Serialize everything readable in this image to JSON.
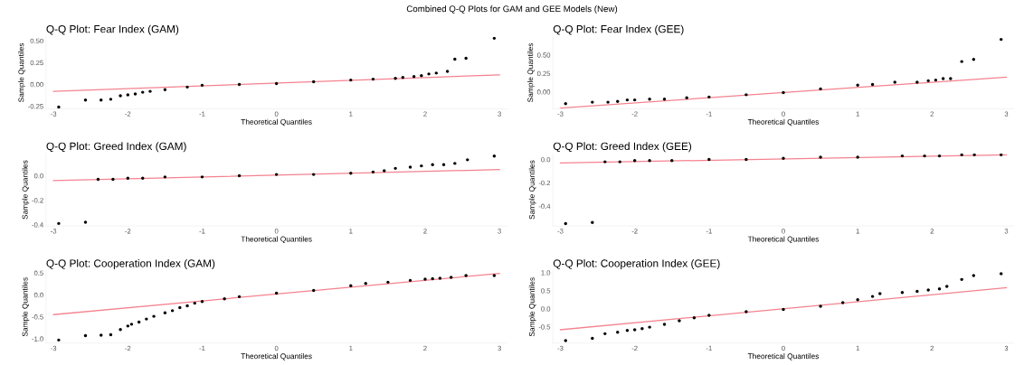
{
  "chart_data": [
    {
      "type": "scatter",
      "title": "Q-Q Plot: Fear Index (GAM)",
      "annotations": [
        "Combined Q-Q Plots for GAM and GEE Models (New)"
      ],
      "xlabel": "Theoretical Quantiles",
      "ylabel": "Sample Quantiles",
      "xlim": [
        -3.1,
        3.1
      ],
      "xticks": [
        -3,
        -2,
        -1,
        0,
        1,
        2,
        3
      ],
      "ylim": [
        -0.28,
        0.55
      ],
      "yticks": [
        -0.25,
        {
          "value": 0,
          "label": "0.00"
        },
        0.25,
        {
          "value": 0.5,
          "label": "0.50"
        }
      ],
      "grid": false,
      "series": [
        {
          "color": "#000000",
          "marker": "circle",
          "x": [
            -2.93,
            -2.57,
            -2.36,
            -2.23,
            -2.1,
            -2.0,
            -1.9,
            -1.8,
            -1.7,
            -1.5,
            -1.2,
            -1.0,
            -0.5,
            0,
            0.5,
            1.0,
            1.3,
            1.6,
            1.7,
            1.85,
            1.95,
            2.05,
            2.15,
            2.3,
            2.4,
            2.55,
            2.93
          ],
          "values": [
            -0.26,
            -0.18,
            -0.18,
            -0.17,
            -0.13,
            -0.12,
            -0.11,
            -0.09,
            -0.08,
            -0.06,
            -0.03,
            -0.01,
            0.0,
            0.01,
            0.03,
            0.05,
            0.06,
            0.07,
            0.08,
            0.09,
            0.1,
            0.12,
            0.13,
            0.15,
            0.29,
            0.3,
            0.53
          ]
        },
        {
          "type": "line",
          "color": "#f4828f",
          "x": [
            -3,
            3
          ],
          "values": [
            -0.08,
            0.11
          ]
        }
      ]
    },
    {
      "type": "scatter",
      "title": "Q-Q Plot: Fear Index (GEE)",
      "xlabel": "Theoretical Quantiles",
      "ylabel": "Sample Quantiles",
      "xlim": [
        -3.1,
        3.1
      ],
      "xticks": [
        -3,
        -2,
        -1,
        0,
        1,
        2,
        3
      ],
      "ylim": [
        -0.23,
        0.75
      ],
      "yticks": [
        {
          "value": 0,
          "label": "0.00"
        },
        0.25,
        {
          "value": 0.5,
          "label": "0.50"
        }
      ],
      "grid": false,
      "series": [
        {
          "color": "#000000",
          "marker": "circle",
          "x": [
            -2.93,
            -2.57,
            -2.36,
            -2.23,
            -2.1,
            -2.0,
            -1.8,
            -1.6,
            -1.3,
            -1.0,
            -0.5,
            0,
            0.5,
            1.0,
            1.2,
            1.5,
            1.8,
            1.95,
            2.05,
            2.15,
            2.25,
            2.4,
            2.56,
            2.93
          ],
          "values": [
            -0.16,
            -0.14,
            -0.14,
            -0.13,
            -0.11,
            -0.11,
            -0.1,
            -0.1,
            -0.08,
            -0.07,
            -0.04,
            -0.01,
            0.04,
            0.09,
            0.1,
            0.13,
            0.13,
            0.15,
            0.16,
            0.18,
            0.18,
            0.41,
            0.44,
            0.71
          ]
        },
        {
          "type": "line",
          "color": "#f4828f",
          "x": [
            -3,
            3
          ],
          "values": [
            -0.22,
            0.2
          ]
        }
      ]
    },
    {
      "type": "scatter",
      "title": "Q-Q Plot: Greed Index (GAM)",
      "xlabel": "Theoretical Quantiles",
      "ylabel": "Sample Quantiles",
      "xlim": [
        -3.1,
        3.1
      ],
      "xticks": [
        -3,
        -2,
        -1,
        0,
        1,
        2,
        3
      ],
      "ylim": [
        -0.41,
        0.18
      ],
      "yticks": [
        {
          "value": -0.4,
          "label": "-0.4"
        },
        {
          "value": -0.2,
          "label": "-0.2"
        },
        {
          "value": 0,
          "label": "0.0"
        }
      ],
      "grid": false,
      "series": [
        {
          "color": "#000000",
          "marker": "circle",
          "x": [
            -2.93,
            -2.57,
            -2.4,
            -2.2,
            -2.0,
            -1.8,
            -1.5,
            -1.0,
            -0.5,
            0,
            0.5,
            1.0,
            1.3,
            1.45,
            1.6,
            1.8,
            1.95,
            2.1,
            2.25,
            2.4,
            2.57,
            2.93
          ],
          "values": [
            -0.39,
            -0.38,
            -0.03,
            -0.03,
            -0.02,
            -0.02,
            -0.01,
            -0.01,
            0.0,
            0.01,
            0.01,
            0.02,
            0.03,
            0.04,
            0.06,
            0.07,
            0.08,
            0.09,
            0.09,
            0.1,
            0.13,
            0.16
          ]
        },
        {
          "type": "line",
          "color": "#f4828f",
          "x": [
            -3,
            3
          ],
          "values": [
            -0.04,
            0.05
          ]
        }
      ]
    },
    {
      "type": "scatter",
      "title": "Q-Q Plot: Greed Index (GEE)",
      "xlabel": "Theoretical Quantiles",
      "ylabel": "Sample Quantiles",
      "xlim": [
        -3.1,
        3.1
      ],
      "xticks": [
        -3,
        -2,
        -1,
        0,
        1,
        2,
        3
      ],
      "ylim": [
        -0.57,
        0.05
      ],
      "yticks": [
        {
          "value": -0.4,
          "label": "-0.4"
        },
        {
          "value": -0.2,
          "label": "-0.2"
        },
        {
          "value": 0,
          "label": "0.0"
        }
      ],
      "grid": false,
      "series": [
        {
          "color": "#000000",
          "marker": "circle",
          "x": [
            -2.93,
            -2.57,
            -2.4,
            -2.2,
            -2.0,
            -1.8,
            -1.5,
            -1.0,
            -0.5,
            0,
            0.5,
            1.0,
            1.6,
            1.9,
            2.1,
            2.4,
            2.57,
            2.93
          ],
          "values": [
            -0.55,
            -0.54,
            -0.02,
            -0.02,
            -0.01,
            -0.01,
            -0.01,
            0.0,
            0.0,
            0.01,
            0.02,
            0.02,
            0.03,
            0.03,
            0.03,
            0.04,
            0.04,
            0.04
          ]
        },
        {
          "type": "line",
          "color": "#f4828f",
          "x": [
            -3,
            3
          ],
          "values": [
            -0.03,
            0.04
          ]
        }
      ]
    },
    {
      "type": "scatter",
      "title": "Q-Q Plot: Cooperation Index (GAM)",
      "xlabel": "Theoretical Quantiles",
      "ylabel": "Sample Quantiles",
      "xlim": [
        -3.1,
        3.1
      ],
      "xticks": [
        -3,
        -2,
        -1,
        0,
        1,
        2,
        3
      ],
      "ylim": [
        -1.1,
        0.55
      ],
      "yticks": [
        {
          "value": -1,
          "label": "-1.0"
        },
        -0.5,
        {
          "value": 0,
          "label": "0.0"
        },
        0.5
      ],
      "grid": false,
      "series": [
        {
          "color": "#000000",
          "marker": "circle",
          "x": [
            -2.93,
            -2.57,
            -2.36,
            -2.23,
            -2.1,
            -2.0,
            -1.95,
            -1.85,
            -1.75,
            -1.65,
            -1.5,
            -1.4,
            -1.3,
            -1.2,
            -1.1,
            -1.0,
            -0.7,
            -0.5,
            0,
            0.5,
            1.0,
            1.2,
            1.5,
            1.8,
            2.0,
            2.1,
            2.2,
            2.35,
            2.55,
            2.93
          ],
          "values": [
            -1.03,
            -0.93,
            -0.92,
            -0.91,
            -0.79,
            -0.71,
            -0.67,
            -0.62,
            -0.55,
            -0.49,
            -0.41,
            -0.36,
            -0.29,
            -0.25,
            -0.19,
            -0.15,
            -0.09,
            -0.04,
            0.04,
            0.1,
            0.21,
            0.26,
            0.29,
            0.33,
            0.36,
            0.37,
            0.38,
            0.4,
            0.44,
            0.44
          ]
        },
        {
          "type": "line",
          "color": "#f4828f",
          "x": [
            -3,
            3
          ],
          "values": [
            -0.45,
            0.49
          ]
        }
      ]
    },
    {
      "type": "scatter",
      "title": "Q-Q Plot: Cooperation Index (GEE)",
      "xlabel": "Theoretical Quantiles",
      "ylabel": "Sample Quantiles",
      "xlim": [
        -3.1,
        3.1
      ],
      "xticks": [
        -3,
        -2,
        -1,
        0,
        1,
        2,
        3
      ],
      "ylim": [
        -0.95,
        1.05
      ],
      "yticks": [
        -0.5,
        {
          "value": 0,
          "label": "0.0"
        },
        0.5,
        {
          "value": 1,
          "label": "1.0"
        }
      ],
      "grid": false,
      "series": [
        {
          "color": "#000000",
          "marker": "circle",
          "x": [
            -2.93,
            -2.57,
            -2.4,
            -2.23,
            -2.1,
            -2.0,
            -1.9,
            -1.8,
            -1.6,
            -1.4,
            -1.2,
            -1.0,
            -0.5,
            0,
            0.5,
            0.8,
            1.0,
            1.2,
            1.3,
            1.6,
            1.8,
            1.95,
            2.1,
            2.2,
            2.4,
            2.56,
            2.93
          ],
          "values": [
            -0.88,
            -0.82,
            -0.69,
            -0.65,
            -0.6,
            -0.58,
            -0.55,
            -0.51,
            -0.43,
            -0.33,
            -0.25,
            -0.18,
            -0.08,
            -0.02,
            0.07,
            0.17,
            0.25,
            0.34,
            0.42,
            0.45,
            0.48,
            0.52,
            0.55,
            0.62,
            0.81,
            0.92,
            0.97
          ]
        },
        {
          "type": "line",
          "color": "#f4828f",
          "x": [
            -3,
            3
          ],
          "values": [
            -0.58,
            0.58
          ]
        }
      ]
    }
  ]
}
